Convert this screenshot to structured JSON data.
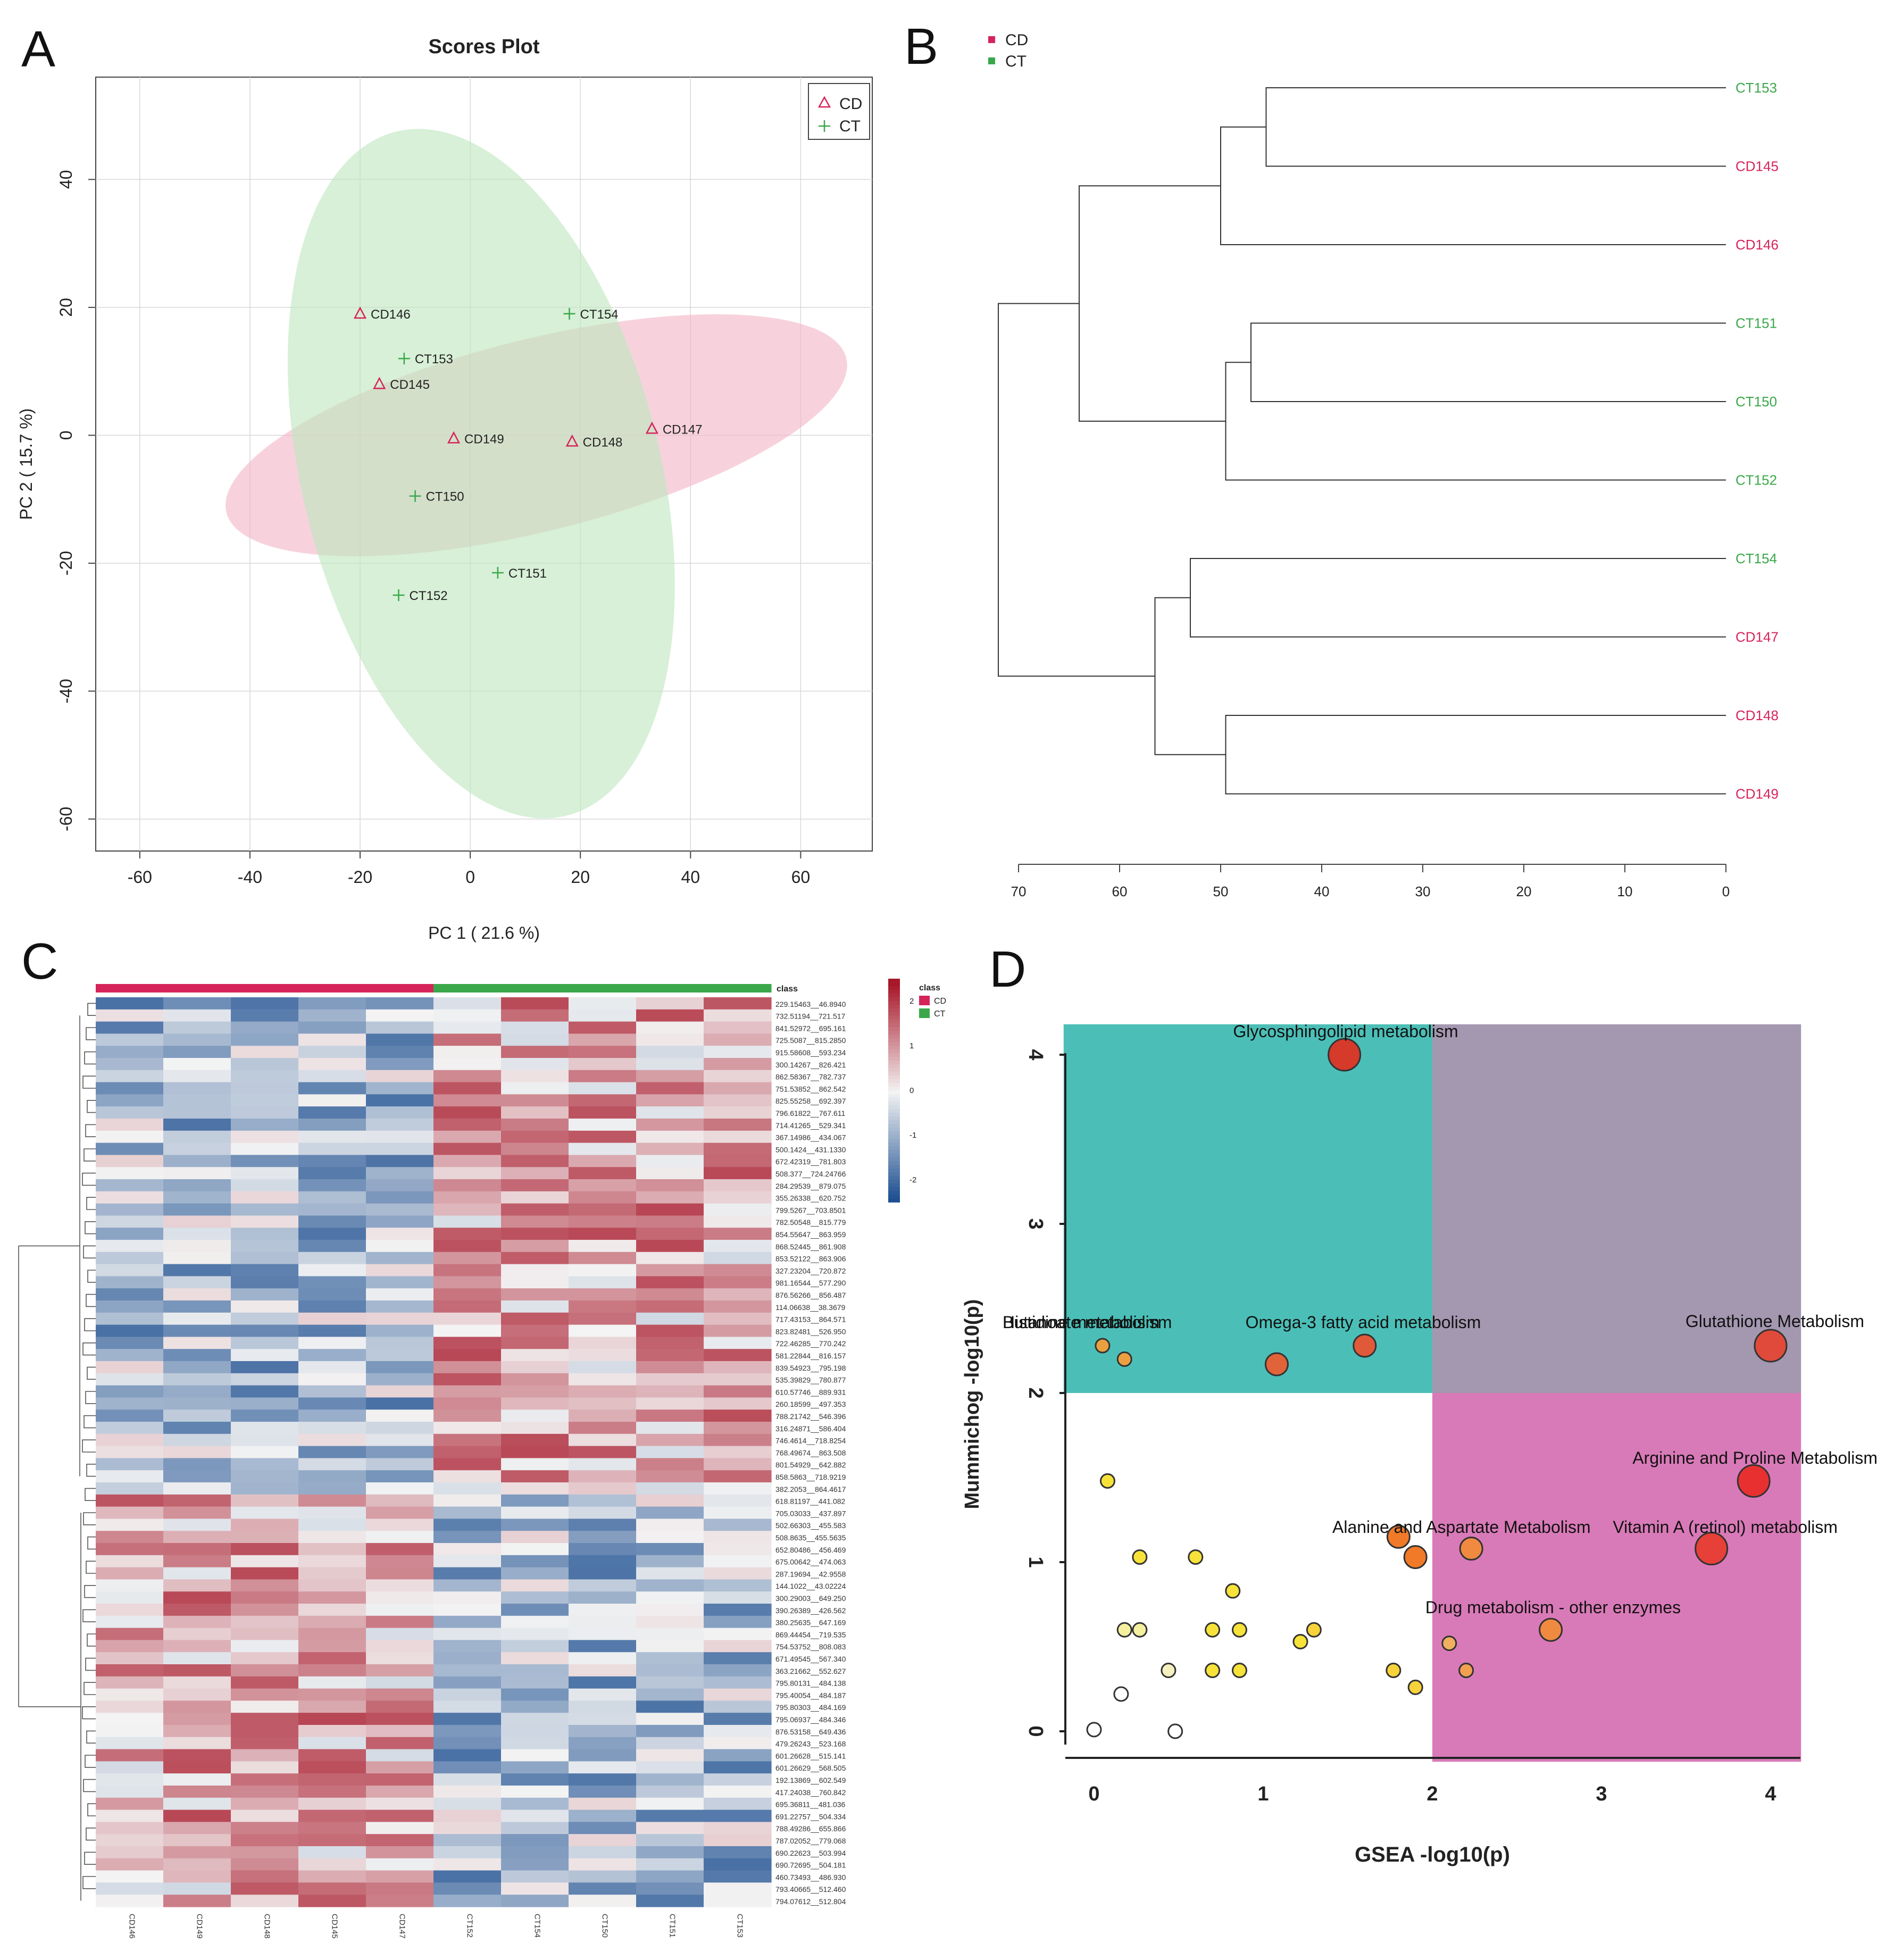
{
  "panel_letters": [
    "A",
    "B",
    "C",
    "D"
  ],
  "colors": {
    "cd": "#d6245a",
    "ct": "#3aa84a",
    "cd_ellipse": "#f2b6c8",
    "ct_ellipse": "#bfe6bf",
    "green_region": "#4bbfb7",
    "purple_region": "#a497b0",
    "pink_region": "#d97ab8",
    "heat_low": "#1d4f91",
    "heat_mid": "#f3f3f3",
    "heat_high": "#a8182a"
  },
  "chart_data": [
    {
      "id": "A",
      "type": "scatter",
      "title": "Scores Plot",
      "xlabel": "PC 1 ( 21.6 %)",
      "ylabel": "PC 2 ( 15.7 %)",
      "xlim": [
        -68,
        73
      ],
      "ylim": [
        -65,
        56
      ],
      "xticks": [
        -60,
        -40,
        -20,
        0,
        20,
        40,
        60
      ],
      "yticks": [
        -60,
        -40,
        -20,
        0,
        20,
        40
      ],
      "grid": true,
      "legend": {
        "position": "top-right",
        "entries": [
          {
            "label": "CD",
            "marker": "triangle"
          },
          {
            "label": "CT",
            "marker": "plus"
          }
        ]
      },
      "ellipses": [
        {
          "group": "CD",
          "cx": 12,
          "cy": 0,
          "rx": 58,
          "ry": 15,
          "angle_deg": -14
        },
        {
          "group": "CT",
          "cx": 2,
          "cy": -6,
          "rx": 64,
          "ry": 28,
          "angle_deg": 76
        }
      ],
      "points": [
        {
          "label": "CD146",
          "group": "CD",
          "x": -20,
          "y": 19
        },
        {
          "label": "CD145",
          "group": "CD",
          "x": -16.5,
          "y": 8
        },
        {
          "label": "CD149",
          "group": "CD",
          "x": -3,
          "y": -0.5
        },
        {
          "label": "CD148",
          "group": "CD",
          "x": 18.5,
          "y": -1
        },
        {
          "label": "CD147",
          "group": "CD",
          "x": 33,
          "y": 1
        },
        {
          "label": "CT154",
          "group": "CT",
          "x": 18,
          "y": 19
        },
        {
          "label": "CT153",
          "group": "CT",
          "x": -12,
          "y": 12
        },
        {
          "label": "CT150",
          "group": "CT",
          "x": -10,
          "y": -9.5
        },
        {
          "label": "CT151",
          "group": "CT",
          "x": 5,
          "y": -21.5
        },
        {
          "label": "CT152",
          "group": "CT",
          "x": -13,
          "y": -25
        }
      ]
    },
    {
      "id": "B",
      "type": "dendrogram",
      "legend": [
        {
          "label": "CD",
          "group": "CD"
        },
        {
          "label": "CT",
          "group": "CT"
        }
      ],
      "xlim": [
        70,
        0
      ],
      "xticks": [
        70,
        60,
        50,
        40,
        30,
        20,
        10,
        0
      ],
      "leaves": [
        {
          "label": "CT153",
          "group": "CT"
        },
        {
          "label": "CD145",
          "group": "CD"
        },
        {
          "label": "CD146",
          "group": "CD"
        },
        {
          "label": "CT151",
          "group": "CT"
        },
        {
          "label": "CT150",
          "group": "CT"
        },
        {
          "label": "CT152",
          "group": "CT"
        },
        {
          "label": "CT154",
          "group": "CT"
        },
        {
          "label": "CD147",
          "group": "CD"
        },
        {
          "label": "CD148",
          "group": "CD"
        },
        {
          "label": "CD149",
          "group": "CD"
        }
      ],
      "merges": [
        {
          "left": 0,
          "right": 1,
          "height": 45.5
        },
        {
          "left": "n0",
          "right": 2,
          "height": 50
        },
        {
          "left": 3,
          "right": 4,
          "height": 47
        },
        {
          "left": "n2",
          "right": 5,
          "height": 49.5
        },
        {
          "left": "n1",
          "right": "n3",
          "height": 64
        },
        {
          "left": 6,
          "right": 7,
          "height": 53
        },
        {
          "left": 8,
          "right": 9,
          "height": 49.5
        },
        {
          "left": "n5",
          "right": "n6",
          "height": 56.5
        },
        {
          "left": "n4",
          "right": "n7",
          "height": 72
        }
      ]
    },
    {
      "id": "C",
      "type": "heatmap",
      "class_label": "class",
      "legend_title": "class",
      "legend_groups": [
        "CD",
        "CT"
      ],
      "scale_ticks": [
        "2",
        "1",
        "0",
        "-1",
        "-2"
      ],
      "value_range": [
        -2.5,
        2.5
      ],
      "columns": [
        "CD146",
        "CD149",
        "CD148",
        "CD145",
        "CD147",
        "CT152",
        "CT154",
        "CT150",
        "CT151",
        "CT153"
      ],
      "column_groups": [
        "CD",
        "CD",
        "CD",
        "CD",
        "CD",
        "CT",
        "CT",
        "CT",
        "CT",
        "CT"
      ],
      "rows": [
        "229.15463__46.8940",
        "732.51194__721.517",
        "841.52972__695.161",
        "725.5087__815.2850",
        "915.58608__593.234",
        "300.14267__826.421",
        "862.58367__782.737",
        "751.53852__862.542",
        "825.55258__692.397",
        "796.61822__767.611",
        "714.41265__529.341",
        "367.14986__434.067",
        "500.1424__431.1330",
        "672.42319__781.803",
        "508.377__724.24766",
        "284.29539__879.075",
        "355.26338__620.752",
        "799.5267__703.8501",
        "782.50548__815.779",
        "854.55647__863.959",
        "868.52445__861.908",
        "853.52122__863.906",
        "327.23204__720.872",
        "981.16544__577.290",
        "876.56266__856.487",
        "114.06638__38.3679",
        "717.43153__864.571",
        "823.82481__526.950",
        "722.46285__770.242",
        "581.22844__816.157",
        "839.54923__795.198",
        "535.39829__780.877",
        "610.57746__889.931",
        "260.18599__497.353",
        "788.21742__546.396",
        "316.24871__586.404",
        "746.4614__718.8254",
        "768.49674__863.508",
        "801.54929__642.882",
        "858.5863__718.9219",
        "382.2053__864.4617",
        "618.81197__441.082",
        "705.03033__437.897",
        "502.66303__455.583",
        "508.8635__455.5635",
        "652.80486__456.469",
        "675.00642__474.063",
        "287.19694__42.9558",
        "144.1022__43.02224",
        "300.29003__649.250",
        "390.26389__426.562",
        "380.25635__647.169",
        "869.44454__719.535",
        "754.53752__808.083",
        "671.49545__567.340",
        "363.21662__552.627",
        "795.80131__484.138",
        "795.40054__484.187",
        "795.80303__484.169",
        "795.06937__484.346",
        "876.53158__649.436",
        "479.26243__523.168",
        "601.26628__515.141",
        "601.26629__568.505",
        "192.13869__602.549",
        "417.24038__760.842",
        "695.36811__481.036",
        "691.22757__504.334",
        "788.49286__655.866",
        "787.02052__779.068",
        "690.22623__503.994",
        "690.72695__504.181",
        "460.73493__486.930",
        "793.40665__512.460",
        "794.07612__512.804"
      ]
    },
    {
      "id": "D",
      "type": "bubble",
      "xlabel": "GSEA -log10(p)",
      "ylabel": "Mummichog -log10(p)",
      "xlim": [
        -0.18,
        4.18
      ],
      "ylim": [
        -0.18,
        4.18
      ],
      "xticks": [
        0,
        1,
        2,
        3,
        4
      ],
      "yticks": [
        0,
        1,
        2,
        3,
        4
      ],
      "regions": [
        {
          "name": "mummichog-significant",
          "x": [
            -0.18,
            2
          ],
          "y": [
            2,
            4.18
          ],
          "color_key": "green_region"
        },
        {
          "name": "both-significant",
          "x": [
            2,
            4.18
          ],
          "y": [
            2,
            4.18
          ],
          "color_key": "purple_region"
        },
        {
          "name": "gsea-significant",
          "x": [
            2,
            4.18
          ],
          "y": [
            -0.18,
            2
          ],
          "color_key": "pink_region"
        }
      ],
      "points": [
        {
          "x": 1.48,
          "y": 4.0,
          "size": 3,
          "color": "#d63a2a",
          "label": "Glycosphingolipid metabolism"
        },
        {
          "x": 4.0,
          "y": 2.28,
          "size": 3,
          "color": "#e04a3a",
          "label": "Glutathione Metabolism"
        },
        {
          "x": 1.6,
          "y": 2.28,
          "size": 2,
          "color": "#e05a3a",
          "label": "Omega-3 fatty acid metabolism"
        },
        {
          "x": 1.08,
          "y": 2.17,
          "size": 2,
          "color": "#e0633a",
          "label": ""
        },
        {
          "x": 0.05,
          "y": 2.28,
          "size": 1,
          "color": "#e8a040",
          "label": "Butanoate metabolism"
        },
        {
          "x": 0.18,
          "y": 2.2,
          "size": 1,
          "color": "#eaa040",
          "label": "Histidine metabolism"
        },
        {
          "x": 3.9,
          "y": 1.48,
          "size": 3,
          "color": "#e83030",
          "label": "Arginine and Proline Metabolism"
        },
        {
          "x": 3.65,
          "y": 1.08,
          "size": 3,
          "color": "#e64038",
          "label": "Vitamin A (retinol) metabolism"
        },
        {
          "x": 1.8,
          "y": 1.15,
          "size": 2,
          "color": "#f07a28",
          "label": "Alanine and Aspartate Metabolism"
        },
        {
          "x": 1.9,
          "y": 1.03,
          "size": 2,
          "color": "#f07a28",
          "label": ""
        },
        {
          "x": 2.23,
          "y": 1.08,
          "size": 2,
          "color": "#f08a40",
          "label": ""
        },
        {
          "x": 2.7,
          "y": 0.6,
          "size": 2,
          "color": "#f08a40",
          "label": "Drug metabolism - other enzymes"
        },
        {
          "x": 2.1,
          "y": 0.52,
          "size": 1,
          "color": "#f0b060",
          "label": ""
        },
        {
          "x": 2.2,
          "y": 0.36,
          "size": 1,
          "color": "#f0a050",
          "label": ""
        },
        {
          "x": 0.08,
          "y": 1.48,
          "size": 1,
          "color": "#f7e23a",
          "label": ""
        },
        {
          "x": 0.27,
          "y": 1.03,
          "size": 1,
          "color": "#f7e23a",
          "label": ""
        },
        {
          "x": 0.6,
          "y": 1.03,
          "size": 1,
          "color": "#f7e23a",
          "label": ""
        },
        {
          "x": 0.82,
          "y": 0.83,
          "size": 1,
          "color": "#f7e23a",
          "label": ""
        },
        {
          "x": 0.18,
          "y": 0.6,
          "size": 1,
          "color": "#f5f0a0",
          "label": ""
        },
        {
          "x": 0.27,
          "y": 0.6,
          "size": 1,
          "color": "#f5f0a0",
          "label": ""
        },
        {
          "x": 0.7,
          "y": 0.6,
          "size": 1,
          "color": "#f7e23a",
          "label": ""
        },
        {
          "x": 0.86,
          "y": 0.6,
          "size": 1,
          "color": "#f7e23a",
          "label": ""
        },
        {
          "x": 1.22,
          "y": 0.53,
          "size": 1,
          "color": "#f7e23a",
          "label": ""
        },
        {
          "x": 1.3,
          "y": 0.6,
          "size": 1,
          "color": "#f7d23a",
          "label": ""
        },
        {
          "x": 0.44,
          "y": 0.36,
          "size": 1,
          "color": "#f5f0c0",
          "label": ""
        },
        {
          "x": 0.7,
          "y": 0.36,
          "size": 1,
          "color": "#f7e23a",
          "label": ""
        },
        {
          "x": 0.86,
          "y": 0.36,
          "size": 1,
          "color": "#f7e23a",
          "label": ""
        },
        {
          "x": 1.77,
          "y": 0.36,
          "size": 1,
          "color": "#f7d23a",
          "label": ""
        },
        {
          "x": 1.9,
          "y": 0.26,
          "size": 1,
          "color": "#f7d23a",
          "label": ""
        },
        {
          "x": 0.16,
          "y": 0.22,
          "size": 1,
          "color": "#ffffff",
          "label": ""
        },
        {
          "x": 0.0,
          "y": 0.01,
          "size": 1,
          "color": "#ffffff",
          "label": ""
        },
        {
          "x": 0.48,
          "y": 0.0,
          "size": 1,
          "color": "#ffffff",
          "label": ""
        }
      ]
    }
  ]
}
